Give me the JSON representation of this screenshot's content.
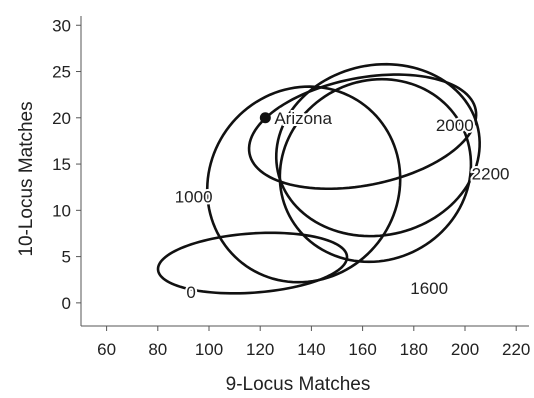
{
  "chart_data": {
    "type": "scatter",
    "title": "",
    "xlabel": "9-Locus Matches",
    "ylabel": "10-Locus Matches",
    "xlim": [
      50,
      225
    ],
    "ylim": [
      -2.5,
      31
    ],
    "xticks": [
      60,
      80,
      100,
      120,
      140,
      160,
      180,
      200,
      220
    ],
    "yticks": [
      0,
      5,
      10,
      15,
      20,
      25,
      30
    ],
    "xtick_labels": [
      "60",
      "80",
      "100",
      "120",
      "140",
      "160",
      "180",
      "200",
      "220"
    ],
    "ytick_labels": [
      "0",
      "5",
      "10",
      "15",
      "20",
      "25",
      "30"
    ],
    "grid": false,
    "legend": "none",
    "point": {
      "label": "Arizona",
      "x": 122,
      "y": 20
    },
    "ellipses": [
      {
        "label": "0",
        "cx": 117,
        "cy": 4.3,
        "rx": 37,
        "ry": 3.2,
        "angle_deg": 4
      },
      {
        "label": "1000",
        "cx": 137,
        "cy": 12.8,
        "rx": 39,
        "ry": 10.2,
        "angle_deg": 52
      },
      {
        "label": "1600",
        "cx": 165,
        "cy": 14.3,
        "rx": 35,
        "ry": 10.5,
        "angle_deg": -62
      },
      {
        "label": "2000",
        "cx": 160,
        "cy": 18.5,
        "rx": 45,
        "ry": 5.8,
        "angle_deg": 11
      },
      {
        "label": "2200",
        "cx": 166,
        "cy": 16.5,
        "rx": 40,
        "ry": 9.2,
        "angle_deg": 12
      }
    ],
    "annotations": [
      {
        "text": "0",
        "x": 93,
        "y": 1.2
      },
      {
        "text": "1000",
        "x": 94,
        "y": 11.5
      },
      {
        "text": "1600",
        "x": 186,
        "y": 1.6
      },
      {
        "text": "2000",
        "x": 196,
        "y": 19.2
      },
      {
        "text": "2200",
        "x": 210,
        "y": 14.0
      },
      {
        "text": "Arizona",
        "x": 139,
        "y": 20
      }
    ],
    "colors": {
      "stroke": "#111111",
      "axis": "#555555",
      "text": "#222222"
    }
  }
}
